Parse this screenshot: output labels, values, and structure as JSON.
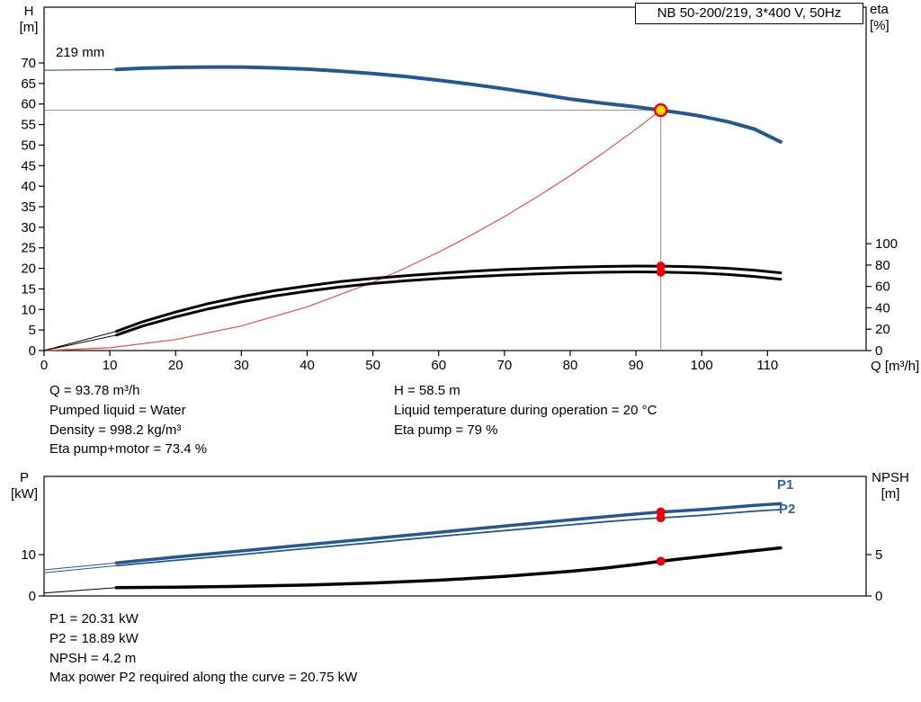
{
  "colors": {
    "blue": "#27588c",
    "blue_label": "#2c659a",
    "red_curve": "#e05044",
    "dot_red": "#e8000b",
    "duty_fill": "#ffd800",
    "marker_line": "#8c8c8c",
    "axis": "#000000"
  },
  "title_box": "NB 50-200/219, 3*400 V, 50Hz",
  "impeller_label": "219 mm",
  "info_top_left": [
    "Q = 93.78 m³/h",
    "Pumped liquid = Water",
    "Density = 998.2 kg/m³",
    "Eta pump+motor = 73.4 %"
  ],
  "info_top_right": [
    "H = 58.5 m",
    "Liquid temperature during operation = 20 °C",
    "Eta pump = 79 %"
  ],
  "info_bottom": [
    "P1 = 20.31 kW",
    "P2 = 18.89 kW",
    "NPSH = 4.2 m",
    "Max power P2 required along the curve = 20.75 kW"
  ],
  "chart_data": [
    {
      "type": "line",
      "name": "qh-eta-chart",
      "title": "NB 50-200/219, 3*400 V, 50Hz",
      "xlabel": "Q [m³/h]",
      "ylabel_left": [
        "H",
        "[m]"
      ],
      "ylabel_right": [
        "eta",
        "[%]"
      ],
      "xlim": [
        0,
        125
      ],
      "ylim": [
        0,
        83.5
      ],
      "x_ticks": [
        0,
        10,
        20,
        30,
        40,
        50,
        60,
        70,
        80,
        90,
        100,
        110
      ],
      "y_ticks": [
        0,
        5,
        10,
        15,
        20,
        25,
        30,
        35,
        40,
        45,
        50,
        55,
        60,
        65,
        70
      ],
      "eta_ticks": [
        0,
        20,
        40,
        60,
        80,
        100
      ],
      "eta_scale_m_per_percent": 0.26,
      "grid": false,
      "duty_point": {
        "q": 93.78,
        "h": 58.5,
        "eta_pump": 79,
        "eta_pump_motor": 73.4
      },
      "series": [
        {
          "name": "head-lead-in",
          "axis": "h",
          "color": "#27588c",
          "width": 1.2,
          "points": [
            [
              0,
              68.2
            ],
            [
              11,
              68.4
            ]
          ]
        },
        {
          "name": "head-219mm",
          "axis": "h",
          "color": "#27588c",
          "width": 4,
          "points": [
            [
              11,
              68.4
            ],
            [
              15,
              68.7
            ],
            [
              20,
              68.9
            ],
            [
              25,
              69.0
            ],
            [
              30,
              69.0
            ],
            [
              35,
              68.8
            ],
            [
              40,
              68.5
            ],
            [
              45,
              68.0
            ],
            [
              50,
              67.4
            ],
            [
              55,
              66.7
            ],
            [
              60,
              65.8
            ],
            [
              65,
              64.8
            ],
            [
              70,
              63.7
            ],
            [
              75,
              62.5
            ],
            [
              80,
              61.2
            ],
            [
              85,
              60.2
            ],
            [
              90,
              59.3
            ],
            [
              93.78,
              58.5
            ],
            [
              97,
              57.8
            ],
            [
              100,
              57.0
            ],
            [
              104,
              55.7
            ],
            [
              108,
              53.9
            ],
            [
              112,
              50.8
            ]
          ]
        },
        {
          "name": "system-curve",
          "axis": "h",
          "color": "#e05044",
          "width": 1.2,
          "points": [
            [
              0,
              0
            ],
            [
              10,
              0.67
            ],
            [
              20,
              2.66
            ],
            [
              30,
              5.99
            ],
            [
              40,
              10.64
            ],
            [
              50,
              16.63
            ],
            [
              55,
              20.12
            ],
            [
              60,
              23.95
            ],
            [
              65,
              28.11
            ],
            [
              70,
              32.6
            ],
            [
              75,
              37.42
            ],
            [
              80,
              42.57
            ],
            [
              85,
              48.06
            ],
            [
              90,
              53.88
            ],
            [
              93.78,
              58.5
            ]
          ]
        },
        {
          "name": "eta-pump-lead-in",
          "axis": "eta",
          "color": "#000000",
          "width": 1,
          "points": [
            [
              0,
              0
            ],
            [
              11,
              18
            ]
          ]
        },
        {
          "name": "eta-pump",
          "axis": "eta",
          "color": "#000000",
          "width": 3,
          "points": [
            [
              11,
              18
            ],
            [
              15,
              27
            ],
            [
              20,
              36
            ],
            [
              25,
              44
            ],
            [
              30,
              50.5
            ],
            [
              35,
              56
            ],
            [
              40,
              60.5
            ],
            [
              45,
              64.5
            ],
            [
              50,
              67.5
            ],
            [
              55,
              70
            ],
            [
              60,
              72.3
            ],
            [
              65,
              74.2
            ],
            [
              70,
              75.8
            ],
            [
              75,
              77
            ],
            [
              80,
              78
            ],
            [
              85,
              78.7
            ],
            [
              90,
              79.1
            ],
            [
              93.78,
              79
            ],
            [
              97,
              78.7
            ],
            [
              100,
              78.2
            ],
            [
              104,
              77
            ],
            [
              108,
              75.2
            ],
            [
              112,
              72.8
            ]
          ]
        },
        {
          "name": "eta-pump-motor-lead-in",
          "axis": "eta",
          "color": "#000000",
          "width": 1,
          "points": [
            [
              0,
              0
            ],
            [
              11,
              14.5
            ]
          ]
        },
        {
          "name": "eta-pump-motor",
          "axis": "eta",
          "color": "#000000",
          "width": 3,
          "points": [
            [
              11,
              14.5
            ],
            [
              15,
              23
            ],
            [
              20,
              31.5
            ],
            [
              25,
              39
            ],
            [
              30,
              45.5
            ],
            [
              35,
              51
            ],
            [
              40,
              55.5
            ],
            [
              45,
              59.5
            ],
            [
              50,
              62.8
            ],
            [
              55,
              65.3
            ],
            [
              60,
              67.4
            ],
            [
              65,
              69.1
            ],
            [
              70,
              70.6
            ],
            [
              75,
              71.8
            ],
            [
              80,
              72.7
            ],
            [
              85,
              73.3
            ],
            [
              90,
              73.6
            ],
            [
              93.78,
              73.4
            ],
            [
              97,
              73
            ],
            [
              100,
              72.4
            ],
            [
              104,
              71.2
            ],
            [
              108,
              69.3
            ],
            [
              112,
              66.8
            ]
          ]
        }
      ]
    },
    {
      "type": "line",
      "name": "power-npsh-chart",
      "xlabel": "",
      "ylabel_left": [
        "P",
        "[kW]"
      ],
      "ylabel_right": [
        "NPSH",
        "[m]"
      ],
      "xlim": [
        0,
        125
      ],
      "p_ticks": [
        0,
        10
      ],
      "npsh_ticks": [
        0,
        5
      ],
      "grid": false,
      "labels": {
        "p1": "P1",
        "p2": "P2"
      },
      "duty_point": {
        "q": 93.78,
        "p1": 20.31,
        "p2": 18.89,
        "npsh": 4.2
      },
      "series": [
        {
          "name": "p1-lead-in",
          "axis": "p",
          "color": "#27588c",
          "width": 1,
          "points": [
            [
              0,
              6.3
            ],
            [
              11,
              8.0
            ]
          ]
        },
        {
          "name": "p1",
          "axis": "p",
          "color": "#27588c",
          "width": 3.5,
          "points": [
            [
              11,
              8.0
            ],
            [
              20,
              9.4
            ],
            [
              30,
              10.9
            ],
            [
              40,
              12.4
            ],
            [
              50,
              13.9
            ],
            [
              60,
              15.4
            ],
            [
              70,
              16.9
            ],
            [
              80,
              18.4
            ],
            [
              85,
              19.1
            ],
            [
              90,
              19.8
            ],
            [
              93.78,
              20.31
            ],
            [
              97,
              20.6
            ],
            [
              100,
              20.9
            ],
            [
              104,
              21.4
            ],
            [
              108,
              21.9
            ],
            [
              112,
              22.3
            ]
          ]
        },
        {
          "name": "p2-lead-in",
          "axis": "p",
          "color": "#27588c",
          "width": 1,
          "points": [
            [
              0,
              5.6
            ],
            [
              11,
              7.3
            ]
          ]
        },
        {
          "name": "p2",
          "axis": "p",
          "color": "#27588c",
          "width": 1.8,
          "points": [
            [
              11,
              7.3
            ],
            [
              20,
              8.6
            ],
            [
              30,
              10.0
            ],
            [
              40,
              11.5
            ],
            [
              50,
              12.9
            ],
            [
              60,
              14.4
            ],
            [
              70,
              15.8
            ],
            [
              80,
              17.2
            ],
            [
              85,
              17.9
            ],
            [
              90,
              18.5
            ],
            [
              93.78,
              18.89
            ],
            [
              97,
              19.2
            ],
            [
              100,
              19.5
            ],
            [
              104,
              20.0
            ],
            [
              108,
              20.5
            ],
            [
              112,
              20.9
            ]
          ]
        },
        {
          "name": "npsh-lead-in",
          "axis": "npsh",
          "color": "#000000",
          "width": 1,
          "points": [
            [
              0,
              0.35
            ],
            [
              11,
              1.0
            ]
          ]
        },
        {
          "name": "npsh",
          "axis": "npsh",
          "color": "#000000",
          "width": 3.5,
          "points": [
            [
              11,
              1.0
            ],
            [
              20,
              1.06
            ],
            [
              30,
              1.16
            ],
            [
              40,
              1.32
            ],
            [
              50,
              1.56
            ],
            [
              60,
              1.9
            ],
            [
              70,
              2.36
            ],
            [
              80,
              2.98
            ],
            [
              85,
              3.35
            ],
            [
              90,
              3.8
            ],
            [
              93.78,
              4.2
            ],
            [
              97,
              4.5
            ],
            [
              100,
              4.75
            ],
            [
              106,
              5.3
            ],
            [
              112,
              5.82
            ]
          ]
        }
      ]
    }
  ]
}
